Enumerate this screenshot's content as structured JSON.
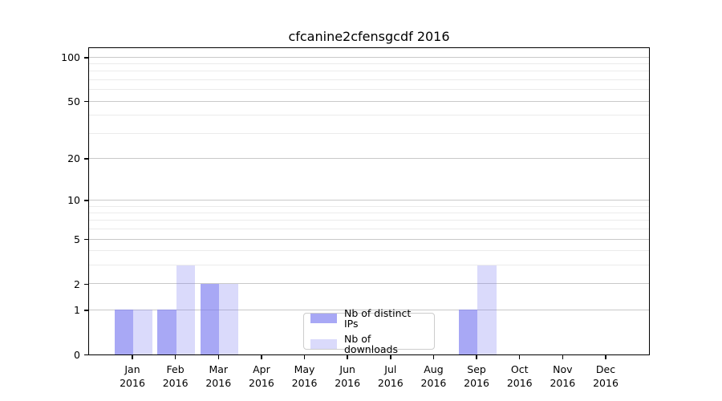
{
  "chart_data": {
    "type": "bar",
    "title": "cfcanine2cfensgcdf 2016",
    "year": "2016",
    "categories": [
      "Jan",
      "Feb",
      "Mar",
      "Apr",
      "May",
      "Jun",
      "Jul",
      "Aug",
      "Sep",
      "Oct",
      "Nov",
      "Dec"
    ],
    "series": [
      {
        "name": "Nb of distinct IPs",
        "color": "#7b7bf0a8",
        "values": [
          1,
          1,
          2,
          0,
          0,
          0,
          0,
          0,
          1,
          0,
          0,
          0
        ]
      },
      {
        "name": "Nb of downloads",
        "color": "#7b7bf048",
        "values": [
          1,
          3,
          2,
          0,
          0,
          0,
          0,
          0,
          3,
          0,
          0,
          0
        ]
      }
    ],
    "y_axis": {
      "scale": "log1p",
      "major_ticks": [
        0,
        1,
        2,
        5,
        10,
        20,
        50,
        100
      ],
      "minor_gridlines": [
        3,
        4,
        6,
        7,
        8,
        9,
        30,
        40,
        60,
        70,
        80,
        90
      ],
      "range": [
        0,
        118
      ]
    },
    "grid": "horizontal-major-and-minor",
    "legend_position": "lower center",
    "colors": {
      "grid_major": "#c9c9c9",
      "grid_minor": "#ebebeb",
      "axis": "#000000",
      "text": "#000000"
    }
  }
}
